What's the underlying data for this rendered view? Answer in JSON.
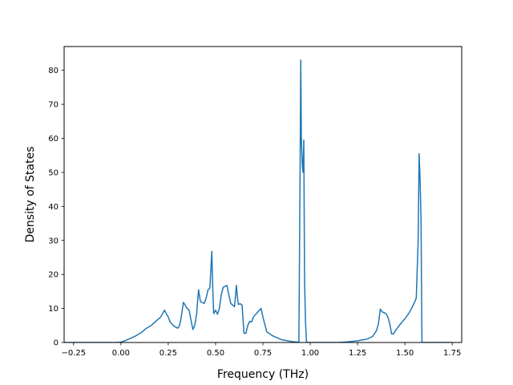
{
  "chart_data": {
    "type": "line",
    "title": "",
    "xlabel": "Frequency (THz)",
    "ylabel": "Density of States",
    "xlim": [
      -0.3,
      1.8
    ],
    "ylim": [
      0,
      87
    ],
    "grid": false,
    "x_ticks": [
      -0.25,
      0.0,
      0.25,
      0.5,
      0.75,
      1.0,
      1.25,
      1.5,
      1.75
    ],
    "x_tick_labels": [
      "−0.25",
      "0.00",
      "0.25",
      "0.50",
      "0.75",
      "1.00",
      "1.25",
      "1.50",
      "1.75"
    ],
    "y_ticks": [
      0,
      10,
      20,
      30,
      40,
      50,
      60,
      70,
      80
    ],
    "y_tick_labels": [
      "0",
      "10",
      "20",
      "30",
      "40",
      "50",
      "60",
      "70",
      "80"
    ],
    "series": [
      {
        "color": "#1f77b4",
        "x": [
          -0.32,
          -0.3,
          -0.25,
          -0.2,
          -0.1,
          -0.02,
          0.0,
          0.02,
          0.05,
          0.08,
          0.11,
          0.13,
          0.16,
          0.18,
          0.21,
          0.23,
          0.25,
          0.26,
          0.28,
          0.3,
          0.31,
          0.32,
          0.33,
          0.35,
          0.36,
          0.38,
          0.39,
          0.4,
          0.41,
          0.42,
          0.44,
          0.45,
          0.46,
          0.47,
          0.48,
          0.485,
          0.49,
          0.5,
          0.51,
          0.52,
          0.53,
          0.54,
          0.56,
          0.57,
          0.58,
          0.6,
          0.61,
          0.615,
          0.62,
          0.63,
          0.64,
          0.65,
          0.66,
          0.67,
          0.68,
          0.69,
          0.7,
          0.72,
          0.74,
          0.75,
          0.77,
          0.8,
          0.85,
          0.9,
          0.94,
          0.945,
          0.95,
          0.953,
          0.958,
          0.962,
          0.966,
          0.97,
          0.975,
          0.98,
          0.985,
          0.99,
          1.0,
          1.05,
          1.1,
          1.15,
          1.2,
          1.25,
          1.3,
          1.33,
          1.35,
          1.36,
          1.37,
          1.38,
          1.4,
          1.41,
          1.42,
          1.43,
          1.44,
          1.45,
          1.47,
          1.5,
          1.52,
          1.54,
          1.56,
          1.57,
          1.575,
          1.58,
          1.585,
          1.59,
          1.6,
          1.65,
          1.7,
          1.75
        ],
        "y": [
          0,
          0,
          0,
          0,
          0,
          0,
          0.1,
          0.5,
          1.2,
          2.0,
          3.0,
          4.0,
          5.0,
          6.0,
          7.5,
          9.5,
          7.5,
          6.0,
          4.8,
          4.2,
          5.0,
          8.0,
          11.8,
          10.0,
          9.5,
          3.8,
          5.0,
          8.5,
          15.5,
          12.0,
          11.5,
          13.0,
          15.5,
          16.0,
          26.8,
          16.0,
          8.5,
          9.5,
          8.3,
          10.0,
          14.0,
          16.2,
          16.8,
          14.0,
          11.5,
          10.5,
          16.8,
          13.5,
          11.2,
          11.4,
          11.0,
          2.7,
          2.7,
          5.0,
          6.2,
          6.0,
          7.5,
          8.8,
          10.0,
          7.5,
          3.2,
          2.0,
          0.8,
          0.3,
          0.05,
          40.0,
          83.0,
          60.0,
          52.0,
          50.0,
          59.5,
          18.0,
          6.0,
          0.3,
          0.0,
          0.0,
          0.0,
          0.0,
          0.0,
          0.0,
          0.2,
          0.5,
          1.0,
          1.8,
          3.5,
          5.5,
          9.8,
          9.0,
          8.5,
          7.5,
          5.5,
          2.5,
          2.5,
          3.5,
          5.0,
          7.0,
          8.5,
          10.5,
          13.0,
          30.0,
          55.5,
          48.0,
          37.0,
          0.0,
          0.0,
          0.0,
          0.0,
          0.0
        ]
      }
    ]
  }
}
